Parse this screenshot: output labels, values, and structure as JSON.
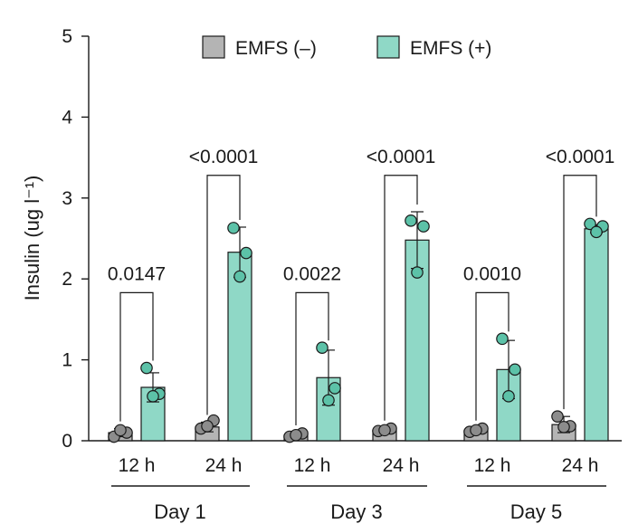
{
  "chart_data": {
    "type": "bar",
    "ylabel": "Insulin (ug l⁻¹)",
    "ylim": [
      0,
      5
    ],
    "yticks": [
      0,
      1,
      2,
      3,
      4,
      5
    ],
    "legend": {
      "placement": "top",
      "entries": [
        {
          "name": "EMFS (–)",
          "color": "#b4b4b4"
        },
        {
          "name": "EMFS (+)",
          "color": "#8fd8c6"
        }
      ]
    },
    "colors": {
      "neg": "#b4b4b4",
      "neg_dot": "#8c8c8c",
      "pos": "#8fd8c6",
      "pos_dot": "#5cc2a8",
      "stroke": "#1a1a1a"
    },
    "groups": [
      {
        "label": "Day 1",
        "timepoints": [
          {
            "label": "12 h",
            "neg": {
              "mean": 0.1,
              "sd": 0.05,
              "points": [
                0.05,
                0.1,
                0.13
              ]
            },
            "pos": {
              "mean": 0.66,
              "sd": 0.18,
              "points": [
                0.9,
                0.58,
                0.55
              ]
            },
            "pvalue": "0.0147",
            "bracket_y": 1.83
          },
          {
            "label": "24 h",
            "neg": {
              "mean": 0.17,
              "sd": 0.06,
              "points": [
                0.15,
                0.25,
                0.18
              ]
            },
            "pos": {
              "mean": 2.33,
              "sd": 0.31,
              "points": [
                2.63,
                2.32,
                2.03
              ]
            },
            "pvalue": "<0.0001",
            "bracket_y": 3.28
          }
        ]
      },
      {
        "label": "Day 3",
        "timepoints": [
          {
            "label": "12 h",
            "neg": {
              "mean": 0.07,
              "sd": 0.03,
              "points": [
                0.05,
                0.09,
                0.07
              ]
            },
            "pos": {
              "mean": 0.78,
              "sd": 0.34,
              "points": [
                1.15,
                0.65,
                0.5
              ]
            },
            "pvalue": "0.0022",
            "bracket_y": 1.83
          },
          {
            "label": "24 h",
            "neg": {
              "mean": 0.13,
              "sd": 0.03,
              "points": [
                0.12,
                0.15,
                0.13
              ]
            },
            "pos": {
              "mean": 2.48,
              "sd": 0.35,
              "points": [
                2.72,
                2.65,
                2.08
              ]
            },
            "pvalue": "<0.0001",
            "bracket_y": 3.28
          }
        ]
      },
      {
        "label": "Day 5",
        "timepoints": [
          {
            "label": "12 h",
            "neg": {
              "mean": 0.13,
              "sd": 0.03,
              "points": [
                0.11,
                0.15,
                0.13
              ]
            },
            "pos": {
              "mean": 0.88,
              "sd": 0.36,
              "points": [
                1.26,
                0.88,
                0.55
              ]
            },
            "pvalue": "0.0010",
            "bracket_y": 1.83
          },
          {
            "label": "24 h",
            "neg": {
              "mean": 0.2,
              "sd": 0.1,
              "points": [
                0.3,
                0.18,
                0.17
              ]
            },
            "pos": {
              "mean": 2.62,
              "sd": 0.05,
              "points": [
                2.68,
                2.65,
                2.58
              ]
            },
            "pvalue": "<0.0001",
            "bracket_y": 3.28
          }
        ]
      }
    ]
  }
}
